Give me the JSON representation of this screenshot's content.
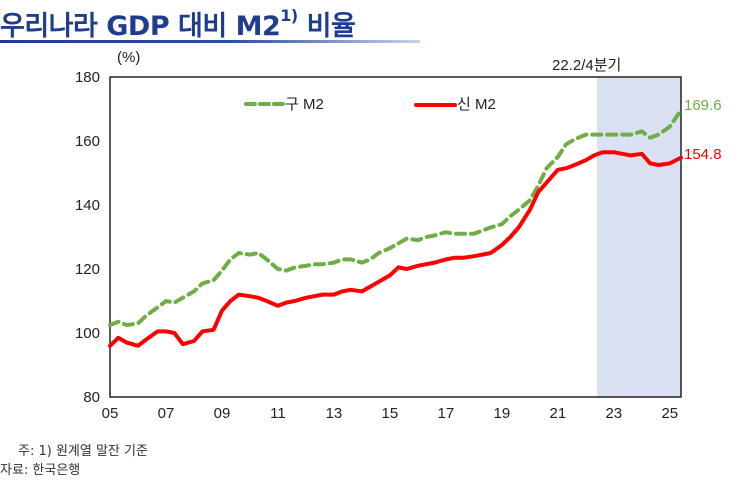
{
  "title": {
    "main": "우리나라 GDP 대비 M2",
    "superscript": "1)",
    "tail": " 비율"
  },
  "notes": {
    "note": "주: 1) 원계열 말잔 기준",
    "source": "자료: 한국은행"
  },
  "colors": {
    "old_m2": "#70ad47",
    "new_m2": "#ff0000",
    "shade": "#d9e1f2",
    "title": "#1f3d8c"
  },
  "chart_data": {
    "type": "line",
    "title": "우리나라 GDP 대비 M2 비율",
    "ylabel": "(%)",
    "xlabel": "",
    "ylim": [
      80,
      180
    ],
    "xlim": [
      2005,
      2025.4
    ],
    "yticks": [
      80,
      100,
      120,
      140,
      160,
      180
    ],
    "xticks": [
      2005,
      2007,
      2009,
      2011,
      2013,
      2015,
      2017,
      2019,
      2021,
      2023,
      2025
    ],
    "xtick_labels": [
      "05",
      "07",
      "09",
      "11",
      "13",
      "15",
      "17",
      "19",
      "21",
      "23",
      "25"
    ],
    "ytick_labels": [
      "80",
      "100",
      "120",
      "140",
      "160",
      "180"
    ],
    "grid": false,
    "legend_position": "top-left",
    "shaded_region": {
      "from": 2022.4,
      "to": 2025.4,
      "label": "22.2/4분기"
    },
    "end_labels": {
      "old_m2": "169.6",
      "new_m2": "154.8"
    },
    "series": [
      {
        "name": "구 M2",
        "style": "dashed",
        "x": [
          2005.0,
          2005.3,
          2005.6,
          2006.0,
          2006.3,
          2006.7,
          2007.0,
          2007.3,
          2007.6,
          2008.0,
          2008.3,
          2008.7,
          2009.0,
          2009.3,
          2009.6,
          2010.0,
          2010.3,
          2010.6,
          2011.0,
          2011.3,
          2011.6,
          2012.0,
          2012.3,
          2012.6,
          2013.0,
          2013.3,
          2013.6,
          2014.0,
          2014.3,
          2014.6,
          2015.0,
          2015.3,
          2015.6,
          2016.0,
          2016.3,
          2016.6,
          2017.0,
          2017.3,
          2017.6,
          2018.0,
          2018.3,
          2018.6,
          2019.0,
          2019.3,
          2019.6,
          2020.0,
          2020.3,
          2020.6,
          2021.0,
          2021.3,
          2021.6,
          2022.0,
          2022.3,
          2022.6,
          2023.0,
          2023.3,
          2023.6,
          2024.0,
          2024.3,
          2024.6,
          2025.0,
          2025.4
        ],
        "values": [
          102.5,
          103.5,
          102.5,
          103,
          105.5,
          108,
          110,
          109.5,
          111,
          113,
          115.5,
          116.5,
          119.5,
          123,
          125,
          124.5,
          125,
          123,
          120,
          119.5,
          120.5,
          121,
          121.5,
          121.5,
          122,
          123,
          123,
          122,
          123,
          125,
          126.5,
          128,
          129.5,
          129,
          130,
          130.5,
          131.5,
          131,
          131,
          131,
          132,
          133,
          134,
          136.5,
          138.5,
          141.5,
          146,
          151.5,
          155,
          159,
          160.5,
          162,
          162,
          162,
          162,
          162,
          162,
          163,
          161,
          162,
          164.5,
          169.6
        ]
      },
      {
        "name": "신 M2",
        "style": "solid",
        "x": [
          2005.0,
          2005.3,
          2005.6,
          2006.0,
          2006.3,
          2006.7,
          2007.0,
          2007.3,
          2007.6,
          2008.0,
          2008.3,
          2008.7,
          2009.0,
          2009.3,
          2009.6,
          2010.0,
          2010.3,
          2010.6,
          2011.0,
          2011.3,
          2011.6,
          2012.0,
          2012.3,
          2012.6,
          2013.0,
          2013.3,
          2013.6,
          2014.0,
          2014.3,
          2014.6,
          2015.0,
          2015.3,
          2015.6,
          2016.0,
          2016.3,
          2016.6,
          2017.0,
          2017.3,
          2017.6,
          2018.0,
          2018.3,
          2018.6,
          2019.0,
          2019.3,
          2019.6,
          2020.0,
          2020.3,
          2020.6,
          2021.0,
          2021.3,
          2021.6,
          2022.0,
          2022.3,
          2022.6,
          2023.0,
          2023.3,
          2023.6,
          2024.0,
          2024.3,
          2024.6,
          2025.0,
          2025.4
        ],
        "values": [
          96,
          98.5,
          97,
          96,
          98,
          100.5,
          100.5,
          100,
          96.5,
          97.5,
          100.5,
          101,
          107,
          110,
          112,
          111.5,
          111,
          110,
          108.5,
          109.5,
          110,
          111,
          111.5,
          112,
          112,
          113,
          113.5,
          113,
          114.5,
          116,
          118,
          120.5,
          120,
          121,
          121.5,
          122,
          123,
          123.5,
          123.5,
          124,
          124.5,
          125,
          127.5,
          130,
          133,
          138.5,
          144,
          147,
          151,
          151.5,
          152.5,
          154,
          155.5,
          156.5,
          156.5,
          156,
          155.5,
          156,
          153,
          152.5,
          153,
          154.8
        ]
      }
    ]
  }
}
